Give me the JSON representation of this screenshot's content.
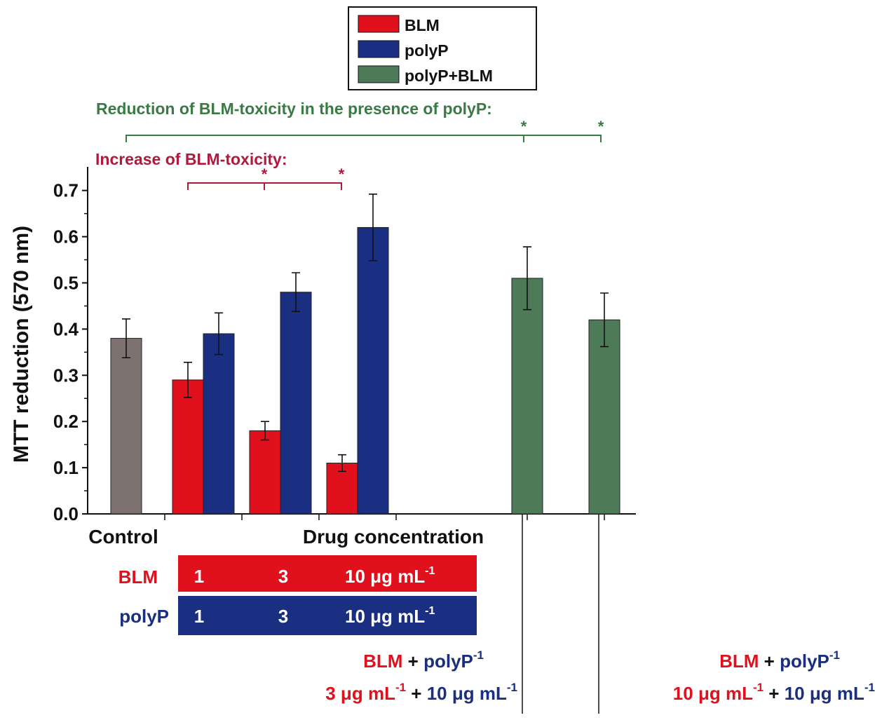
{
  "colors": {
    "control": "#7d7270",
    "blm": "#e0101c",
    "polyp": "#1a2e82",
    "combo": "#4d7a57",
    "reduction_text": "#3a7a45",
    "increase_text": "#b01a3c"
  },
  "legend": {
    "items": [
      {
        "label": "BLM",
        "color": "#e0101c"
      },
      {
        "label": "polyP",
        "color": "#1a2e82"
      },
      {
        "label": "polyP+BLM",
        "color": "#4d7a57"
      }
    ]
  },
  "annotations": {
    "reduction": "Reduction of BLM-toxicity in the presence of polyP:",
    "increase": "Increase of BLM-toxicity:",
    "star": "*"
  },
  "chart_data": {
    "type": "bar",
    "ylabel": "MTT reduction (570 nm)",
    "xlabel": "Drug concentration",
    "ylim": [
      0,
      0.75
    ],
    "yticks": [
      "0.0",
      "0.1",
      "0.2",
      "0.3",
      "0.4",
      "0.5",
      "0.6",
      "0.7"
    ],
    "bars": [
      {
        "name": "Control",
        "series": "control",
        "x": 0.5,
        "value": 0.38,
        "error": 0.042
      },
      {
        "name": "BLM 1",
        "series": "blm",
        "x": 1.3,
        "value": 0.29,
        "error": 0.038
      },
      {
        "name": "polyP 1",
        "series": "polyp",
        "x": 1.7,
        "value": 0.39,
        "error": 0.045
      },
      {
        "name": "BLM 3",
        "series": "blm",
        "x": 2.3,
        "value": 0.18,
        "error": 0.02
      },
      {
        "name": "polyP 3",
        "series": "polyp",
        "x": 2.7,
        "value": 0.48,
        "error": 0.042
      },
      {
        "name": "BLM 10",
        "series": "blm",
        "x": 3.3,
        "value": 0.11,
        "error": 0.018
      },
      {
        "name": "polyP 10",
        "series": "polyp",
        "x": 3.7,
        "value": 0.62,
        "error": 0.072
      },
      {
        "name": "BLM 3 + polyP 10",
        "series": "combo",
        "x": 5.7,
        "value": 0.51,
        "error": 0.068
      },
      {
        "name": "BLM 10 + polyP 10",
        "series": "combo",
        "x": 6.7,
        "value": 0.42,
        "error": 0.058
      }
    ],
    "xlabels": {
      "control": "Control",
      "drug": "Drug concentration"
    }
  },
  "table": {
    "blm_label": "BLM",
    "polyp_label": "polyP",
    "blm_values": [
      "1",
      "3",
      "10 μg mL"
    ],
    "polyp_values": [
      "1",
      "3",
      "10 μg mL"
    ],
    "unit_sup": "-1"
  },
  "combos": [
    {
      "blm": "BLM",
      "plus": " + ",
      "polyp": "polyP",
      "sup": "-1",
      "blm_conc": "3 μg mL",
      "polyp_conc": "10 μg mL"
    },
    {
      "blm": "BLM",
      "plus": " + ",
      "polyp": "polyP",
      "sup": "-1",
      "blm_conc": "10 μg mL",
      "polyp_conc": "10 μg mL"
    }
  ]
}
